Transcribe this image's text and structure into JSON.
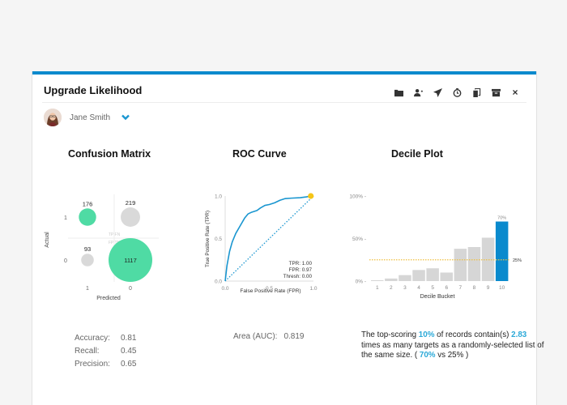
{
  "panel": {
    "title": "Upgrade Likelihood",
    "accent_color": "#0a8acd",
    "toolbar": [
      {
        "icon": "folder-icon",
        "label": "Folder"
      },
      {
        "icon": "assign-user-icon",
        "label": "Assign user"
      },
      {
        "icon": "send-icon",
        "label": "Send"
      },
      {
        "icon": "clock-icon",
        "label": "Schedule"
      },
      {
        "icon": "copy-icon",
        "label": "Copy"
      },
      {
        "icon": "archive-icon",
        "label": "Archive"
      },
      {
        "icon": "close-icon",
        "label": "×"
      }
    ],
    "user": {
      "name": "Jane Smith"
    }
  },
  "sections": {
    "confusion_title": "Confusion Matrix",
    "roc_title": "ROC Curve",
    "decile_title": "Decile Plot"
  },
  "metrics": {
    "accuracy_label": "Accuracy:",
    "accuracy": "0.81",
    "recall_label": "Recall:",
    "recall": "0.45",
    "precision_label": "Precision:",
    "precision": "0.65",
    "auc_label": "Area (AUC):",
    "auc": "0.819"
  },
  "summary": {
    "p1": "The top-scoring ",
    "top_pct": "10%",
    "p2": " of records contain(s) ",
    "lift": "2.83",
    "p3": " times as many targets as a randomly-selected list of the same size. ( ",
    "model_pct": "70%",
    "p4": " vs 25% )"
  },
  "chart_data": [
    {
      "type": "scatter",
      "title": "Confusion Matrix",
      "xlabel": "Predicted",
      "ylabel": "Actual",
      "x_ticks": [
        "1",
        "0"
      ],
      "y_ticks": [
        "1",
        "0"
      ],
      "quadrant_labels": [
        "TP",
        "FN",
        "FP",
        "TN"
      ],
      "cells": [
        {
          "predicted": "1",
          "actual": "1",
          "label": "TP",
          "value": 176,
          "correct": true
        },
        {
          "predicted": "0",
          "actual": "1",
          "label": "FN",
          "value": 219,
          "correct": false
        },
        {
          "predicted": "1",
          "actual": "0",
          "label": "FP",
          "value": 93,
          "correct": false
        },
        {
          "predicted": "0",
          "actual": "0",
          "label": "TN",
          "value": 1117,
          "correct": true
        }
      ],
      "colors": {
        "correct": "#4fdba4",
        "incorrect": "#d9d9d9"
      }
    },
    {
      "type": "line",
      "title": "ROC Curve",
      "xlabel": "False Positive Rate (FPR)",
      "ylabel": "True Positive Rate (TPR)",
      "xlim": [
        0,
        1
      ],
      "ylim": [
        0,
        1
      ],
      "x_ticks": [
        "0.0",
        "0.5",
        "1.0"
      ],
      "y_ticks": [
        "0.0",
        "0.5",
        "1.0"
      ],
      "series": [
        {
          "name": "ROC",
          "color": "#1a96d0",
          "x": [
            0,
            0.02,
            0.05,
            0.08,
            0.12,
            0.17,
            0.22,
            0.26,
            0.3,
            0.36,
            0.4,
            0.45,
            0.5,
            0.56,
            0.62,
            0.68,
            0.75,
            0.85,
            0.92,
            0.97
          ],
          "y": [
            0,
            0.18,
            0.35,
            0.46,
            0.56,
            0.65,
            0.74,
            0.79,
            0.81,
            0.83,
            0.86,
            0.89,
            0.9,
            0.92,
            0.95,
            0.97,
            0.975,
            0.98,
            0.99,
            1.0
          ]
        },
        {
          "name": "Random",
          "color": "#1a96d0",
          "style": "dotted",
          "x": [
            0,
            1
          ],
          "y": [
            0,
            1
          ]
        }
      ],
      "marker": {
        "x": 0.97,
        "y": 1.0,
        "color": "#f5c518"
      },
      "annotation": [
        "TPR: 1.00",
        "FPR: 0.97",
        "Thresh: 0.00"
      ]
    },
    {
      "type": "bar",
      "title": "Decile Plot",
      "xlabel": "Decile Bucket",
      "categories": [
        "1",
        "2",
        "3",
        "4",
        "5",
        "6",
        "7",
        "8",
        "9",
        "10"
      ],
      "values": [
        1,
        3,
        7,
        13,
        15,
        10,
        38,
        40,
        51,
        70
      ],
      "ylim": [
        0,
        100
      ],
      "y_ticks": [
        "0%",
        "50%",
        "100%"
      ],
      "highlight": {
        "index": 9,
        "label": "70%",
        "color": "#0a8acd"
      },
      "bar_color": "#d6d6d6",
      "baseline": {
        "value": 25,
        "label": "25%",
        "color": "#f0c040"
      }
    }
  ]
}
